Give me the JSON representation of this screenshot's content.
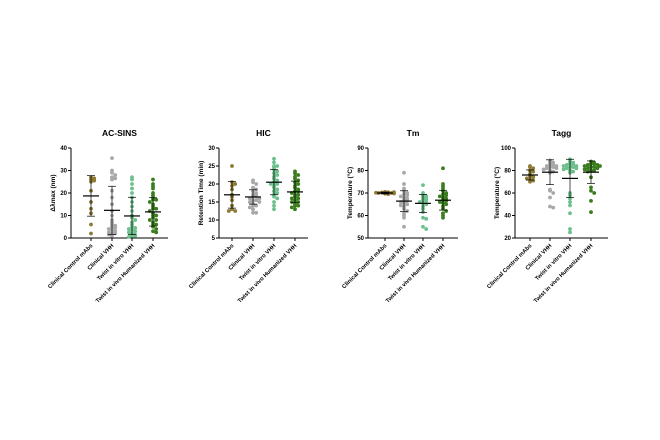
{
  "chart_data": [
    {
      "type": "scatter",
      "title": "AC-SINS",
      "ylabel": "Δλmax (nm)",
      "ylim": [
        0,
        40
      ],
      "yticks": [
        0,
        10,
        20,
        30,
        40
      ],
      "categories": [
        "Clinical Control mAbs",
        "Clinical VHH",
        "Twist in vitro VHH",
        "Twist in vivo Humanized VHH"
      ],
      "groups": [
        {
          "values": [
            27,
            26.5,
            26,
            25,
            25.5,
            21,
            16,
            13,
            11,
            6,
            2
          ],
          "mean": 18.7,
          "sd": 9.0
        },
        {
          "values": [
            35.5,
            30,
            29,
            28,
            27,
            26.5,
            26,
            21,
            18,
            15,
            12,
            10,
            8,
            7,
            6,
            5.5,
            5,
            4.5,
            4,
            3.5,
            3,
            2.5,
            2,
            2,
            1.5,
            1
          ],
          "mean": 12.3,
          "sd": 10.7
        },
        {
          "values": [
            27,
            26,
            24,
            22,
            20,
            18,
            16,
            14,
            12,
            10,
            9,
            8,
            7,
            6,
            5,
            4.5,
            4,
            3.5,
            3,
            2.5,
            2,
            1.5,
            1,
            1,
            0.5
          ],
          "mean": 9.8,
          "sd": 8.3
        },
        {
          "values": [
            26,
            24,
            23,
            22,
            20,
            19,
            18,
            17,
            17,
            16,
            15,
            14,
            13,
            13,
            12,
            11,
            10,
            10,
            9,
            8,
            8,
            7,
            6,
            6,
            5,
            4,
            3,
            2.5
          ],
          "mean": 11.6,
          "sd": 6.3
        }
      ]
    },
    {
      "type": "scatter",
      "title": "HIC",
      "ylabel": "Retention Time (min)",
      "ylim": [
        5,
        30
      ],
      "yticks": [
        5,
        10,
        15,
        20,
        25,
        30
      ],
      "categories": [
        "Clinical Control mAbs",
        "Clinical VHH",
        "Twist in vitro VHH",
        "Twist in vivo Humanized VHH"
      ],
      "groups": [
        {
          "values": [
            25,
            20.5,
            20,
            19.5,
            18.5,
            17,
            16.5,
            15.5,
            14,
            13,
            12.5,
            12.5
          ],
          "mean": 17.0,
          "sd": 3.7
        },
        {
          "values": [
            21,
            20.5,
            20,
            19,
            18.5,
            18,
            17.5,
            17,
            17,
            16.5,
            16.5,
            16,
            16,
            15.5,
            15.5,
            15,
            15,
            14.5,
            14,
            14,
            13.5,
            13,
            12,
            12
          ],
          "mean": 16.4,
          "sd": 2.0
        },
        {
          "values": [
            27,
            26,
            25,
            25,
            24.5,
            24,
            23.5,
            23,
            22.5,
            22,
            21.5,
            21,
            20.5,
            20,
            20,
            19.5,
            19,
            18.5,
            18,
            17.5,
            17,
            16.5,
            16,
            15,
            14,
            13
          ],
          "mean": 20.5,
          "sd": 3.5
        },
        {
          "values": [
            23.5,
            23,
            22.5,
            22,
            21.5,
            21,
            20.5,
            20,
            19.5,
            19,
            18.5,
            18,
            18,
            17.5,
            17,
            17,
            16.5,
            16,
            16,
            15.5,
            15,
            15,
            14.5,
            14,
            14,
            13.5,
            13
          ],
          "mean": 17.8,
          "sd": 3.0
        }
      ]
    },
    {
      "type": "scatter",
      "title": "Tm",
      "ylabel": "Temperature (°C)",
      "ylim": [
        50,
        90
      ],
      "yticks": [
        50,
        60,
        70,
        80,
        90
      ],
      "categories": [
        "Clinical Control mAbs",
        "Clinical VHH",
        "Twist in vitro VHH",
        "Twist in vivo Humanized VHH"
      ],
      "groups": [
        {
          "values": [
            70.5,
            70.3,
            70.2,
            70,
            70,
            69.8,
            69.7,
            69.5,
            70.1,
            70.4
          ],
          "mean": 70.0,
          "sd": 0.4
        },
        {
          "values": [
            79,
            74,
            72,
            71,
            70,
            69.5,
            69,
            68.5,
            68,
            67.5,
            67,
            66.5,
            66,
            65.5,
            65,
            64.5,
            64,
            63,
            62,
            61,
            60,
            59,
            55
          ],
          "mean": 66.4,
          "sd": 4.6
        },
        {
          "values": [
            73.5,
            70,
            69,
            68.5,
            68,
            67.5,
            67,
            66.5,
            66,
            65.5,
            65,
            64,
            63,
            61.5,
            59,
            58.5,
            55,
            54
          ],
          "mean": 65.4,
          "sd": 4.0
        },
        {
          "values": [
            81,
            74,
            73,
            72,
            71,
            70,
            69.5,
            69,
            68.5,
            68,
            67.5,
            67,
            66.5,
            66,
            65.5,
            65,
            64,
            63,
            62,
            61,
            60,
            59
          ],
          "mean": 66.8,
          "sd": 4.4
        }
      ]
    },
    {
      "type": "scatter",
      "title": "Tagg",
      "ylabel": "Temperature (°C)",
      "ylim": [
        20,
        100
      ],
      "yticks": [
        20,
        40,
        60,
        80,
        100
      ],
      "categories": [
        "Clinical Control mAbs",
        "Clinical VHH",
        "Twist in vitro VHH",
        "Twist in vivo Humanized VHH"
      ],
      "groups": [
        {
          "values": [
            84,
            83,
            82,
            80,
            79,
            77,
            75,
            74,
            73,
            72,
            71,
            70
          ],
          "mean": 76.0,
          "sd": 4.5
        },
        {
          "values": [
            89,
            88,
            87,
            86,
            85,
            84,
            84,
            83,
            83,
            82,
            82,
            81,
            80,
            79,
            78,
            63,
            62,
            60,
            56,
            48,
            47
          ],
          "mean": 78.5,
          "sd": 11.0
        },
        {
          "values": [
            90,
            88,
            87,
            86,
            85,
            85,
            84,
            84,
            83,
            83,
            82,
            82,
            81,
            80,
            79,
            78,
            60,
            58,
            55,
            52,
            49,
            42,
            28,
            25
          ],
          "mean": 73.0,
          "sd": 17.0
        },
        {
          "values": [
            88,
            87,
            86,
            86,
            85,
            85,
            84,
            84,
            83,
            83,
            82,
            82,
            81,
            80,
            80,
            79,
            74,
            65,
            62,
            60,
            53,
            43
          ],
          "mean": 78.5,
          "sd": 10.0
        }
      ]
    }
  ],
  "colors": [
    "#8c7a35",
    "#a8a8a8",
    "#6cc08b",
    "#3a7d1e"
  ],
  "grid": false,
  "legend": "none"
}
